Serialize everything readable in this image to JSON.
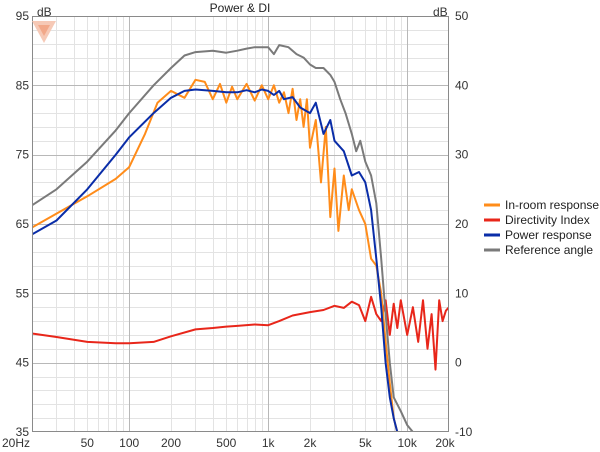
{
  "chart_data": {
    "type": "line",
    "title": "Power & DI",
    "x_scale": "log",
    "x_range_hz": [
      20,
      20000
    ],
    "x_ticks": [
      {
        "value": 20,
        "label": "20Hz"
      },
      {
        "value": 50,
        "label": "50"
      },
      {
        "value": 100,
        "label": "100"
      },
      {
        "value": 200,
        "label": "200"
      },
      {
        "value": 500,
        "label": "500"
      },
      {
        "value": 1000,
        "label": "1k"
      },
      {
        "value": 2000,
        "label": "2k"
      },
      {
        "value": 5000,
        "label": "5k"
      },
      {
        "value": 10000,
        "label": "10k"
      },
      {
        "value": 20000,
        "label": "20k"
      }
    ],
    "y_left": {
      "unit": "dB",
      "range": [
        35,
        95
      ],
      "ticks": [
        95,
        85,
        75,
        65,
        55,
        45,
        35
      ]
    },
    "y_right": {
      "unit": "dB",
      "range": [
        -10,
        50
      ],
      "ticks": [
        50,
        40,
        30,
        20,
        10,
        0,
        -10
      ]
    },
    "grid": true,
    "legend": "right-middle",
    "series": [
      {
        "name": "In-room response",
        "color": "#FF8C1A",
        "axis": "left",
        "points": [
          [
            20,
            64.5
          ],
          [
            30,
            66.5
          ],
          [
            50,
            69
          ],
          [
            80,
            71.5
          ],
          [
            100,
            73.2
          ],
          [
            130,
            78
          ],
          [
            160,
            82.5
          ],
          [
            200,
            84.2
          ],
          [
            250,
            83.2
          ],
          [
            300,
            85.8
          ],
          [
            350,
            85.5
          ],
          [
            400,
            83
          ],
          [
            450,
            85.2
          ],
          [
            500,
            82.5
          ],
          [
            550,
            84.8
          ],
          [
            600,
            83
          ],
          [
            700,
            85.2
          ],
          [
            800,
            82.8
          ],
          [
            900,
            85
          ],
          [
            1000,
            83
          ],
          [
            1100,
            85
          ],
          [
            1200,
            82.5
          ],
          [
            1300,
            84
          ],
          [
            1400,
            81
          ],
          [
            1500,
            84.5
          ],
          [
            1600,
            80
          ],
          [
            1700,
            83
          ],
          [
            1800,
            79
          ],
          [
            1900,
            83
          ],
          [
            2000,
            76
          ],
          [
            2200,
            80
          ],
          [
            2400,
            71
          ],
          [
            2600,
            79
          ],
          [
            2800,
            66
          ],
          [
            3000,
            73
          ],
          [
            3200,
            64
          ],
          [
            3500,
            72
          ],
          [
            3800,
            67
          ],
          [
            4000,
            70
          ],
          [
            4500,
            67
          ],
          [
            5000,
            65
          ],
          [
            5500,
            60
          ],
          [
            6000,
            59
          ],
          [
            6500,
            55
          ],
          [
            7000,
            48
          ],
          [
            7500,
            42
          ],
          [
            8000,
            37
          ],
          [
            8500,
            35
          ]
        ]
      },
      {
        "name": "Directivity Index",
        "color": "#E8261A",
        "axis": "right",
        "points": [
          [
            20,
            4.2
          ],
          [
            30,
            3.7
          ],
          [
            50,
            3.0
          ],
          [
            80,
            2.8
          ],
          [
            100,
            2.8
          ],
          [
            150,
            3.0
          ],
          [
            200,
            3.8
          ],
          [
            300,
            4.8
          ],
          [
            400,
            5.0
          ],
          [
            500,
            5.2
          ],
          [
            600,
            5.3
          ],
          [
            800,
            5.5
          ],
          [
            1000,
            5.4
          ],
          [
            1200,
            6.0
          ],
          [
            1500,
            6.8
          ],
          [
            2000,
            7.3
          ],
          [
            2500,
            7.6
          ],
          [
            3000,
            8.2
          ],
          [
            3500,
            7.9
          ],
          [
            4000,
            8.8
          ],
          [
            4500,
            8.3
          ],
          [
            5000,
            6.0
          ],
          [
            5500,
            9.5
          ],
          [
            6000,
            7.0
          ],
          [
            6500,
            6.0
          ],
          [
            7000,
            9.0
          ],
          [
            7500,
            4.0
          ],
          [
            8000,
            8.5
          ],
          [
            8500,
            5.0
          ],
          [
            9000,
            9.0
          ],
          [
            10000,
            4.0
          ],
          [
            11000,
            8.0
          ],
          [
            12000,
            3.0
          ],
          [
            13000,
            9.0
          ],
          [
            14000,
            2.0
          ],
          [
            15000,
            7.0
          ],
          [
            16000,
            -1.0
          ],
          [
            17000,
            9.0
          ],
          [
            18000,
            6.0
          ],
          [
            19000,
            7.5
          ],
          [
            20000,
            8.0
          ]
        ]
      },
      {
        "name": "Power response",
        "color": "#0A2DA8",
        "axis": "left",
        "points": [
          [
            20,
            63.5
          ],
          [
            30,
            65.5
          ],
          [
            50,
            70
          ],
          [
            80,
            75
          ],
          [
            100,
            77.5
          ],
          [
            150,
            81
          ],
          [
            200,
            83.2
          ],
          [
            250,
            84.2
          ],
          [
            300,
            84.4
          ],
          [
            400,
            84.2
          ],
          [
            500,
            84.0
          ],
          [
            600,
            84.0
          ],
          [
            700,
            84.3
          ],
          [
            800,
            84.0
          ],
          [
            900,
            84.4
          ],
          [
            1000,
            84.2
          ],
          [
            1100,
            83.6
          ],
          [
            1200,
            84.2
          ],
          [
            1300,
            83.0
          ],
          [
            1500,
            83.3
          ],
          [
            1700,
            81.8
          ],
          [
            2000,
            81.0
          ],
          [
            2200,
            82.5
          ],
          [
            2500,
            78.0
          ],
          [
            2800,
            80.0
          ],
          [
            3000,
            77.0
          ],
          [
            3500,
            75.5
          ],
          [
            4000,
            72.0
          ],
          [
            4500,
            72.5
          ],
          [
            5000,
            71.0
          ],
          [
            5500,
            67.0
          ],
          [
            6000,
            60.0
          ],
          [
            6500,
            53.0
          ],
          [
            7000,
            45.0
          ],
          [
            7500,
            40.0
          ],
          [
            8000,
            37.0
          ],
          [
            8500,
            35.0
          ]
        ]
      },
      {
        "name": "Reference angle",
        "color": "#7A7A7A",
        "axis": "left",
        "points": [
          [
            20,
            67.7
          ],
          [
            30,
            70
          ],
          [
            50,
            74
          ],
          [
            80,
            78.5
          ],
          [
            100,
            81
          ],
          [
            150,
            85
          ],
          [
            200,
            87.5
          ],
          [
            250,
            89.3
          ],
          [
            300,
            89.8
          ],
          [
            400,
            90.0
          ],
          [
            500,
            89.7
          ],
          [
            600,
            90.0
          ],
          [
            700,
            90.3
          ],
          [
            800,
            90.5
          ],
          [
            1000,
            90.5
          ],
          [
            1100,
            89.5
          ],
          [
            1200,
            90.8
          ],
          [
            1400,
            90.5
          ],
          [
            1600,
            89.5
          ],
          [
            1800,
            89.0
          ],
          [
            2000,
            88.0
          ],
          [
            2200,
            87.5
          ],
          [
            2500,
            87.5
          ],
          [
            2800,
            86.5
          ],
          [
            3000,
            85.5
          ],
          [
            3300,
            83.0
          ],
          [
            3600,
            81.0
          ],
          [
            4000,
            78.0
          ],
          [
            4300,
            75.5
          ],
          [
            4600,
            77.0
          ],
          [
            5000,
            74.0
          ],
          [
            5500,
            72.0
          ],
          [
            6000,
            68.0
          ],
          [
            6500,
            60.0
          ],
          [
            7000,
            52.0
          ],
          [
            7500,
            45.0
          ],
          [
            8000,
            40.0
          ],
          [
            9000,
            38.0
          ],
          [
            10000,
            36.0
          ],
          [
            11000,
            35.0
          ]
        ]
      }
    ]
  }
}
